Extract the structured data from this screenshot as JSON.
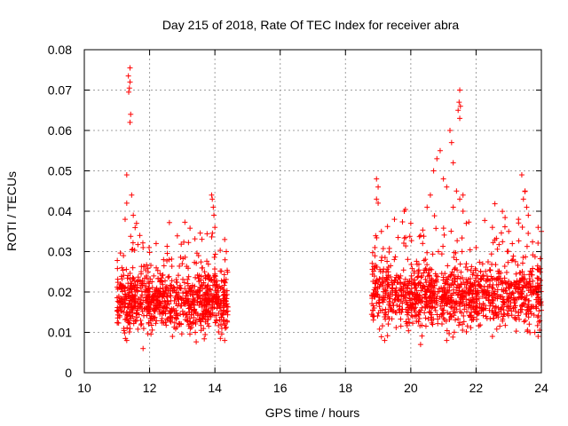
{
  "chart_data": {
    "type": "scatter",
    "title": "Day 215 of 2018, Rate Of TEC Index for receiver abra",
    "xlabel": "GPS time / hours",
    "ylabel": "ROTI / TECUs",
    "xlim": [
      10,
      24
    ],
    "ylim": [
      0,
      0.08
    ],
    "xticks": [
      10,
      12,
      14,
      16,
      18,
      20,
      22,
      24
    ],
    "yticks": [
      0,
      0.01,
      0.02,
      0.03,
      0.04,
      0.05,
      0.06,
      0.07,
      0.08
    ],
    "xtick_labels": [
      "10",
      "12",
      "14",
      "16",
      "18",
      "20",
      "22",
      "24"
    ],
    "ytick_labels": [
      "0",
      "0.01",
      "0.02",
      "0.03",
      "0.04",
      "0.05",
      "0.06",
      "0.07",
      "0.08"
    ],
    "grid": true,
    "marker": "+",
    "color": "#ff0000",
    "series": [
      {
        "name": "ROTI",
        "segments": [
          {
            "x_range": [
              11.0,
              14.4
            ],
            "y_base": 0.0175,
            "y_spread": 0.012,
            "density": 900
          },
          {
            "x_range": [
              18.8,
              24.0
            ],
            "y_base": 0.019,
            "y_spread": 0.013,
            "density": 1200
          }
        ],
        "points": [
          [
            11.4,
            0.0755
          ],
          [
            11.35,
            0.0735
          ],
          [
            11.4,
            0.072
          ],
          [
            11.38,
            0.0705
          ],
          [
            11.36,
            0.0695
          ],
          [
            11.42,
            0.064
          ],
          [
            11.4,
            0.062
          ],
          [
            11.3,
            0.049
          ],
          [
            11.45,
            0.044
          ],
          [
            11.3,
            0.042
          ],
          [
            11.25,
            0.038
          ],
          [
            11.5,
            0.039
          ],
          [
            11.6,
            0.037
          ],
          [
            11.7,
            0.034
          ],
          [
            11.2,
            0.029
          ],
          [
            11.15,
            0.026
          ],
          [
            11.1,
            0.022
          ],
          [
            11.8,
            0.031
          ],
          [
            12.2,
            0.032
          ],
          [
            12.6,
            0.028
          ],
          [
            13.0,
            0.027
          ],
          [
            13.5,
            0.029
          ],
          [
            13.9,
            0.044
          ],
          [
            13.92,
            0.043
          ],
          [
            13.95,
            0.041
          ],
          [
            13.97,
            0.039
          ],
          [
            14.0,
            0.036
          ],
          [
            14.3,
            0.033
          ],
          [
            14.35,
            0.03
          ],
          [
            11.3,
            0.008
          ],
          [
            11.8,
            0.006
          ],
          [
            12.7,
            0.009
          ],
          [
            13.4,
            0.01
          ],
          [
            14.3,
            0.008
          ],
          [
            18.95,
            0.048
          ],
          [
            19.0,
            0.046
          ],
          [
            18.95,
            0.043
          ],
          [
            19.0,
            0.042
          ],
          [
            19.1,
            0.035
          ],
          [
            18.9,
            0.031
          ],
          [
            19.5,
            0.038
          ],
          [
            19.8,
            0.04
          ],
          [
            20.0,
            0.037
          ],
          [
            20.3,
            0.034
          ],
          [
            20.5,
            0.041
          ],
          [
            20.6,
            0.044
          ],
          [
            20.7,
            0.05
          ],
          [
            20.8,
            0.053
          ],
          [
            20.9,
            0.055
          ],
          [
            21.0,
            0.048
          ],
          [
            21.1,
            0.046
          ],
          [
            21.2,
            0.06
          ],
          [
            21.25,
            0.057
          ],
          [
            21.3,
            0.052
          ],
          [
            21.4,
            0.045
          ],
          [
            21.45,
            0.065
          ],
          [
            21.5,
            0.07
          ],
          [
            21.48,
            0.067
          ],
          [
            21.52,
            0.066
          ],
          [
            21.5,
            0.063
          ],
          [
            21.6,
            0.04
          ],
          [
            21.7,
            0.037
          ],
          [
            21.3,
            0.041
          ],
          [
            21.6,
            0.044
          ],
          [
            21.5,
            0.043
          ],
          [
            22.0,
            0.031
          ],
          [
            22.5,
            0.036
          ],
          [
            23.0,
            0.035
          ],
          [
            23.3,
            0.038
          ],
          [
            23.4,
            0.049
          ],
          [
            23.5,
            0.045
          ],
          [
            23.45,
            0.043
          ],
          [
            23.55,
            0.041
          ],
          [
            23.6,
            0.039
          ],
          [
            23.9,
            0.036
          ],
          [
            24.0,
            0.035
          ],
          [
            23.8,
            0.01
          ],
          [
            23.9,
            0.009
          ],
          [
            21.1,
            0.008
          ],
          [
            22.5,
            0.009
          ],
          [
            20.3,
            0.007
          ],
          [
            19.2,
            0.008
          ]
        ]
      }
    ]
  }
}
